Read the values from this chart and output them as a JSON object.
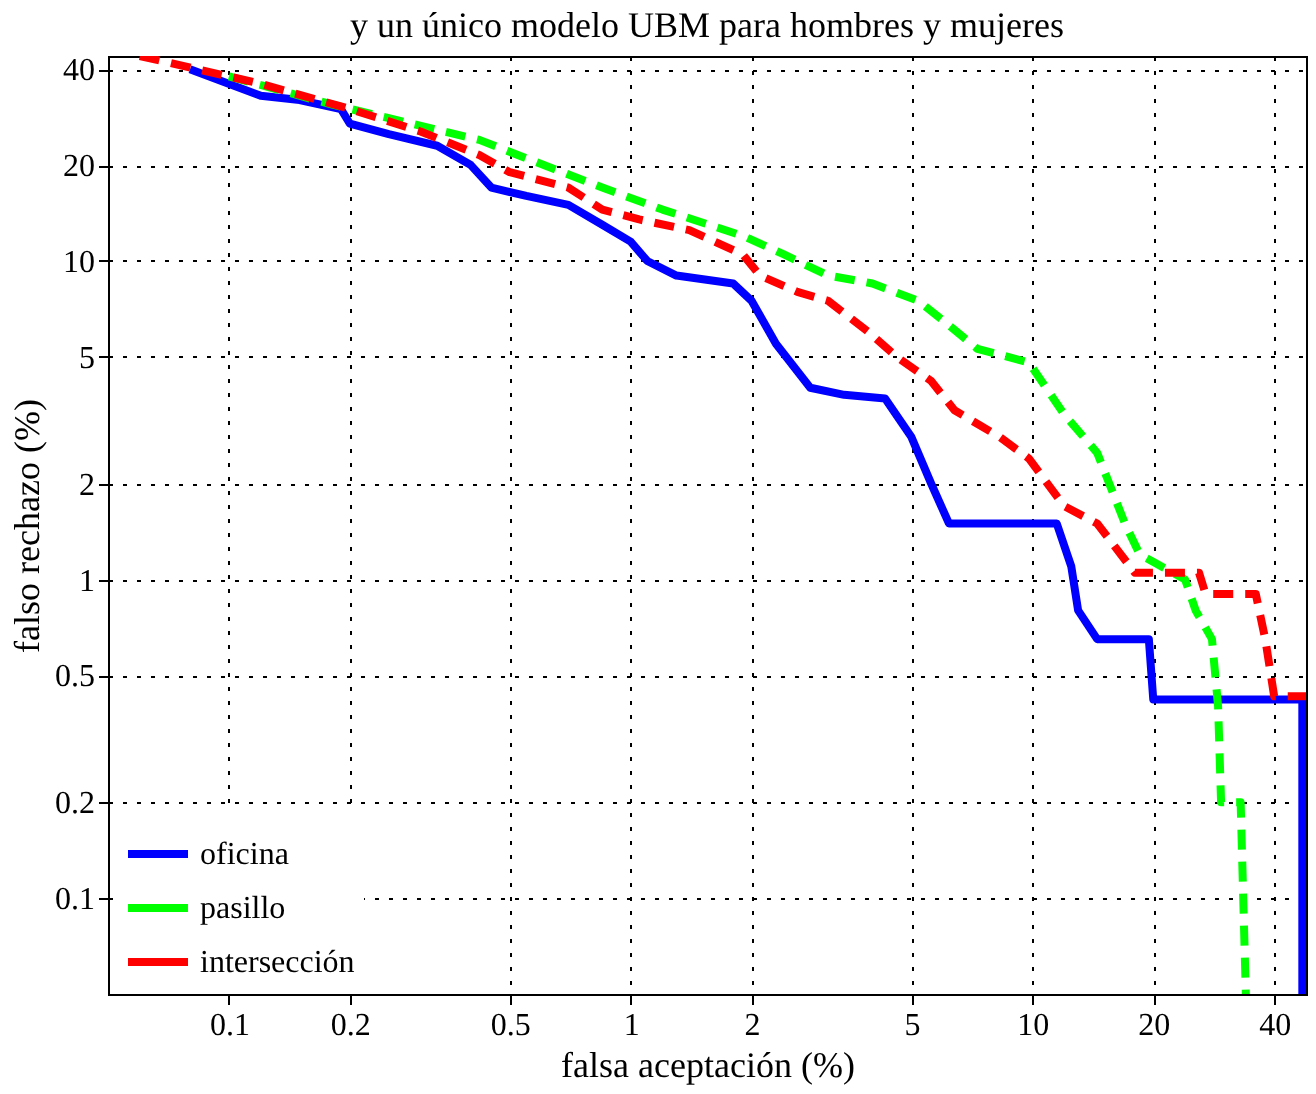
{
  "chart_data": {
    "type": "line",
    "title": "y un único modelo UBM para hombres y mujeres",
    "xlabel": "falsa aceptación (%)",
    "ylabel": "falso rechazo (%)",
    "xlim": [
      0.05,
      48
    ],
    "ylim": [
      0.05,
      44
    ],
    "xticks": [
      0.1,
      0.2,
      0.5,
      1,
      2,
      5,
      10,
      20,
      40
    ],
    "yticks": [
      0.1,
      0.2,
      0.5,
      1,
      2,
      5,
      10,
      20,
      40
    ],
    "log": "xy",
    "grid": true,
    "legend": "bottom left",
    "marker": "none",
    "series": [
      {
        "name": "oficina",
        "color": "#0000ff",
        "line_style": "solid",
        "x": [
          0.08,
          0.12,
          0.15,
          0.19,
          0.2,
          0.25,
          0.33,
          0.4,
          0.45,
          0.55,
          0.7,
          0.85,
          1,
          1.1,
          1.3,
          1.8,
          2,
          2.3,
          2.8,
          3.4,
          4.3,
          5,
          5.6,
          6.2,
          11.5,
          12.5,
          13,
          14.5,
          19.5,
          20,
          47,
          47
        ],
        "values": [
          40,
          33,
          32,
          30,
          27,
          25,
          23,
          20,
          17,
          16,
          15,
          13,
          11.5,
          10,
          9,
          8.5,
          7.5,
          5.5,
          4,
          3.8,
          3.7,
          2.8,
          2,
          1.5,
          1.5,
          1.1,
          0.8,
          0.65,
          0.65,
          0.42,
          0.42,
          0.05
        ]
      },
      {
        "name": "pasillo",
        "color": "#00ff00",
        "line_style": "dashed",
        "x": [
          0.1,
          0.18,
          0.42,
          0.55,
          0.85,
          1.2,
          1.9,
          2.4,
          3.1,
          4,
          5.2,
          6,
          7.3,
          9.8,
          12,
          14.5,
          17,
          18.5,
          24,
          25.5,
          28,
          29,
          29.5,
          33,
          34
        ],
        "values": [
          38,
          31,
          24,
          21,
          17,
          14.5,
          12,
          10.5,
          9,
          8.5,
          7.5,
          6.5,
          5.3,
          4.8,
          3.3,
          2.5,
          1.5,
          1.2,
          1,
          0.8,
          0.65,
          0.4,
          0.2,
          0.2,
          0.05
        ]
      },
      {
        "name": "intersección",
        "color": "#ff0000",
        "line_style": "dashed",
        "x": [
          0.06,
          0.12,
          0.2,
          0.3,
          0.42,
          0.5,
          0.7,
          0.85,
          1.05,
          1.4,
          1.9,
          2.1,
          2.6,
          3.1,
          3.9,
          4.6,
          5.6,
          6.4,
          8.3,
          9.8,
          12,
          14.5,
          18,
          26,
          27,
          36,
          38,
          40,
          48
        ],
        "values": [
          44,
          36,
          30,
          25.5,
          21.5,
          19,
          17,
          14.5,
          13.5,
          12.5,
          10.5,
          9,
          8,
          7.5,
          6,
          5,
          4.2,
          3.4,
          2.8,
          2.4,
          1.7,
          1.5,
          1.05,
          1.05,
          0.9,
          0.9,
          0.65,
          0.43,
          0.43
        ]
      }
    ]
  }
}
